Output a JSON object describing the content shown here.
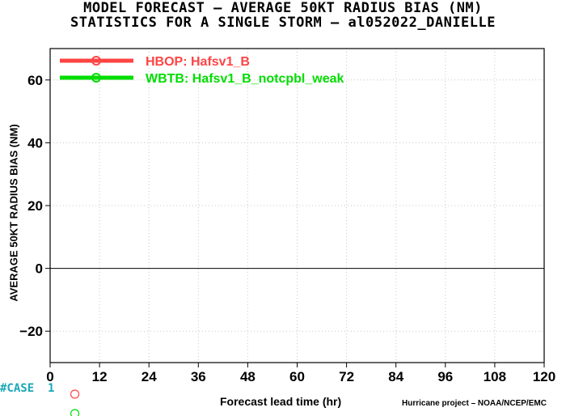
{
  "title_lines": [
    "MODEL FORECAST – AVERAGE 50KT RADIUS BIAS (NM)",
    "STATISTICS FOR A SINGLE STORM – al052022_DANIELLE"
  ],
  "case_label": "#CASE",
  "case_count": "1",
  "credit": "Hurricane project – NOAA/NCEP/EMC",
  "colors": {
    "series1": "#ff4444",
    "series2": "#00dd00",
    "case_label": "#1aa7b8",
    "grid": "#c8c8c8"
  },
  "chart_data": {
    "type": "line",
    "title": "MODEL FORECAST – AVERAGE 50KT RADIUS BIAS (NM)",
    "subtitle": "STATISTICS FOR A SINGLE STORM – al052022_DANIELLE",
    "xlabel": "Forecast lead time (hr)",
    "ylabel": "AVERAGE 50KT RADIUS BIAS (NM)",
    "xlim": [
      0,
      120
    ],
    "ylim": [
      -30,
      70
    ],
    "x_ticks": [
      0,
      12,
      24,
      36,
      48,
      60,
      72,
      84,
      96,
      108,
      120
    ],
    "y_ticks": [
      -20,
      0,
      20,
      40,
      60
    ],
    "y_tick_labels": [
      "−20",
      "0",
      "20",
      "40",
      "60"
    ],
    "grid": true,
    "zero_line": true,
    "legend_position": "top-left",
    "series": [
      {
        "name": "HBOP: Hafsv1_B",
        "color": "#ff4444",
        "x": [],
        "y": []
      },
      {
        "name": "WBTB: Hafsv1_B_notcpbl_weak",
        "color": "#00dd00",
        "x": [],
        "y": []
      }
    ],
    "case_markers": [
      {
        "x": 6,
        "series": "HBOP: Hafsv1_B",
        "color": "#ff4444"
      },
      {
        "x": 6,
        "series": "WBTB: Hafsv1_B_notcpbl_weak",
        "color": "#00dd00"
      }
    ]
  }
}
